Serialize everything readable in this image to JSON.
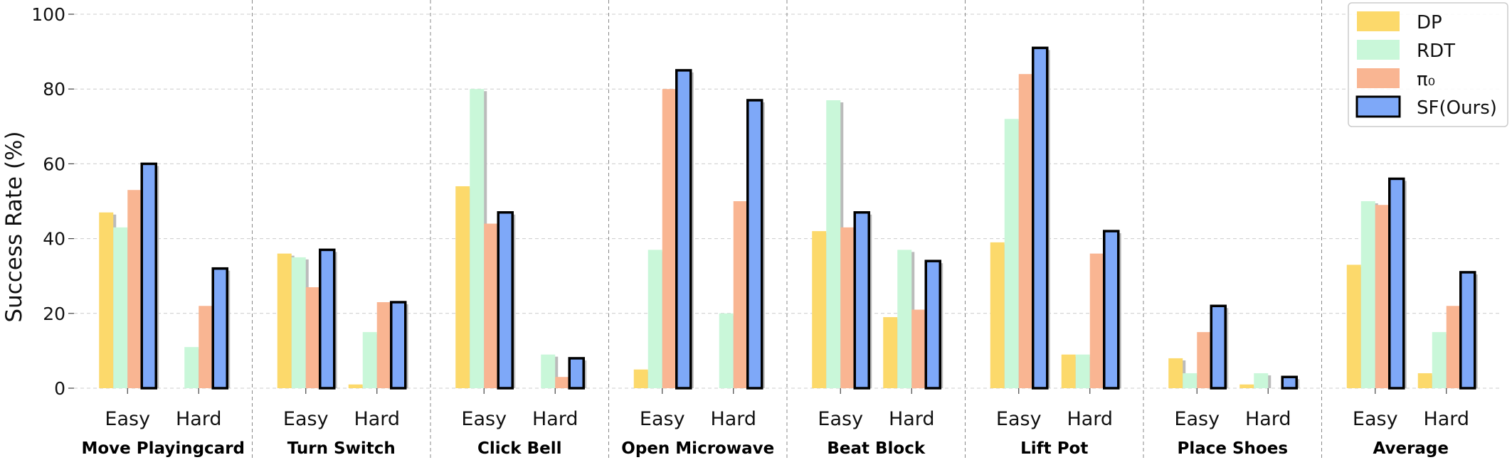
{
  "chart_data": {
    "type": "bar",
    "ylabel": "Success Rate (%)",
    "ylim": [
      0,
      100
    ],
    "yticks": [
      0,
      20,
      40,
      60,
      80,
      100
    ],
    "grid": true,
    "legend_position": "top-right",
    "groups": [
      "Move Playingcard",
      "Turn Switch",
      "Click Bell",
      "Open Microwave",
      "Beat Block",
      "Lift Pot",
      "Place Shoes",
      "Average"
    ],
    "subcategories": [
      "Easy",
      "Hard"
    ],
    "series": [
      {
        "name": "DP",
        "color": "#fcd96b",
        "values": [
          [
            47,
            0
          ],
          [
            36,
            1
          ],
          [
            54,
            0
          ],
          [
            5,
            0
          ],
          [
            42,
            19
          ],
          [
            39,
            9
          ],
          [
            8,
            1
          ],
          [
            33,
            4
          ]
        ]
      },
      {
        "name": "RDT",
        "color": "#c9f7d9",
        "values": [
          [
            43,
            11
          ],
          [
            35,
            15
          ],
          [
            80,
            9
          ],
          [
            37,
            20
          ],
          [
            77,
            37
          ],
          [
            72,
            9
          ],
          [
            4,
            4
          ],
          [
            50,
            15
          ]
        ]
      },
      {
        "name": "π₀",
        "color": "#f9b592",
        "values": [
          [
            53,
            22
          ],
          [
            27,
            23
          ],
          [
            44,
            3
          ],
          [
            80,
            50
          ],
          [
            43,
            21
          ],
          [
            84,
            36
          ],
          [
            15,
            0
          ],
          [
            49,
            22
          ]
        ]
      },
      {
        "name": "SF(Ours)",
        "color": "#7ea8f8",
        "outlined": true,
        "values": [
          [
            60,
            32
          ],
          [
            37,
            23
          ],
          [
            47,
            8
          ],
          [
            85,
            77
          ],
          [
            47,
            34
          ],
          [
            91,
            42
          ],
          [
            22,
            3
          ],
          [
            56,
            31
          ]
        ]
      }
    ]
  }
}
